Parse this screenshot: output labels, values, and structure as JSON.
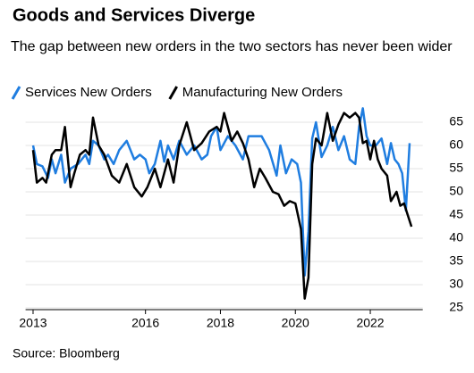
{
  "chart_data": {
    "type": "line",
    "title": "Goods and Services Diverge",
    "subtitle": "The gap between new orders in the two sectors has never been wider",
    "source": "Source: Bloomberg",
    "xlim": [
      2012.8,
      2023.4
    ],
    "xticks": [
      2013,
      2016,
      2018,
      2020,
      2022
    ],
    "ylim": [
      25,
      69
    ],
    "yticks": [
      25,
      30,
      35,
      40,
      45,
      50,
      55,
      60,
      65
    ],
    "grid": true,
    "series": [
      {
        "name": "Services New Orders",
        "color": "#1f7de0",
        "x": [
          2013.0,
          2013.1,
          2013.25,
          2013.4,
          2013.5,
          2013.6,
          2013.75,
          2013.85,
          2014.0,
          2014.2,
          2014.4,
          2014.5,
          2014.6,
          2014.75,
          2014.9,
          2015.0,
          2015.15,
          2015.3,
          2015.5,
          2015.7,
          2015.85,
          2016.0,
          2016.1,
          2016.25,
          2016.4,
          2016.5,
          2016.6,
          2016.75,
          2016.9,
          2017.1,
          2017.3,
          2017.5,
          2017.65,
          2017.75,
          2017.9,
          2018.0,
          2018.2,
          2018.4,
          2018.6,
          2018.75,
          2018.9,
          2019.1,
          2019.3,
          2019.5,
          2019.6,
          2019.75,
          2019.9,
          2020.05,
          2020.15,
          2020.25,
          2020.35,
          2020.45,
          2020.55,
          2020.7,
          2020.85,
          2021.0,
          2021.15,
          2021.3,
          2021.45,
          2021.6,
          2021.7,
          2021.8,
          2021.9,
          2022.0,
          2022.15,
          2022.3,
          2022.45,
          2022.55,
          2022.65,
          2022.75,
          2022.85,
          2022.95,
          2023.05
        ],
        "values": [
          60,
          56,
          55.5,
          53,
          57,
          54,
          58,
          52,
          55,
          56,
          58,
          56,
          61,
          60,
          57,
          58,
          56,
          59,
          61,
          57,
          58,
          57,
          54,
          56,
          61,
          56.5,
          60,
          57,
          61,
          58,
          60,
          57,
          58,
          62,
          64,
          59,
          62,
          60,
          57,
          62,
          62,
          62,
          59,
          53.5,
          60,
          54,
          57,
          56,
          52,
          32,
          41.5,
          61.5,
          65,
          57.5,
          60,
          64,
          59,
          62,
          57,
          56,
          64,
          68,
          62,
          60,
          60,
          61.5,
          56,
          60.5,
          57,
          56,
          54,
          46,
          60.5
        ]
      },
      {
        "name": "Manufacturing New Orders",
        "color": "#000000",
        "x": [
          2013.0,
          2013.1,
          2013.25,
          2013.35,
          2013.5,
          2013.6,
          2013.75,
          2013.85,
          2014.0,
          2014.1,
          2014.25,
          2014.4,
          2014.5,
          2014.6,
          2014.75,
          2014.9,
          2015.1,
          2015.3,
          2015.5,
          2015.7,
          2015.9,
          2016.05,
          2016.25,
          2016.4,
          2016.6,
          2016.75,
          2016.9,
          2017.1,
          2017.3,
          2017.5,
          2017.7,
          2017.9,
          2018.0,
          2018.1,
          2018.3,
          2018.45,
          2018.6,
          2018.75,
          2018.9,
          2019.05,
          2019.2,
          2019.4,
          2019.55,
          2019.7,
          2019.85,
          2020.0,
          2020.15,
          2020.25,
          2020.35,
          2020.45,
          2020.55,
          2020.7,
          2020.85,
          2021.0,
          2021.15,
          2021.3,
          2021.45,
          2021.6,
          2021.7,
          2021.8,
          2021.9,
          2022.0,
          2022.1,
          2022.2,
          2022.3,
          2022.45,
          2022.55,
          2022.7,
          2022.8,
          2022.9,
          2023.0,
          2023.1
        ],
        "values": [
          59,
          52,
          53,
          52,
          58,
          59,
          59,
          64,
          51,
          54,
          58,
          59,
          58,
          66,
          60,
          58,
          53.5,
          52,
          56,
          51,
          49,
          51,
          55,
          51,
          57,
          52,
          60,
          65,
          59,
          60.5,
          63,
          64,
          63,
          67,
          61,
          63,
          60.5,
          57,
          51,
          55,
          53,
          50,
          49.5,
          47,
          48,
          47.5,
          42,
          27,
          31.5,
          56,
          61.5,
          60,
          67,
          61,
          64.5,
          67,
          66,
          67,
          66,
          60.5,
          61,
          57,
          61,
          57,
          55,
          53.5,
          48,
          50,
          47,
          47.5,
          45,
          42.5
        ]
      }
    ]
  }
}
